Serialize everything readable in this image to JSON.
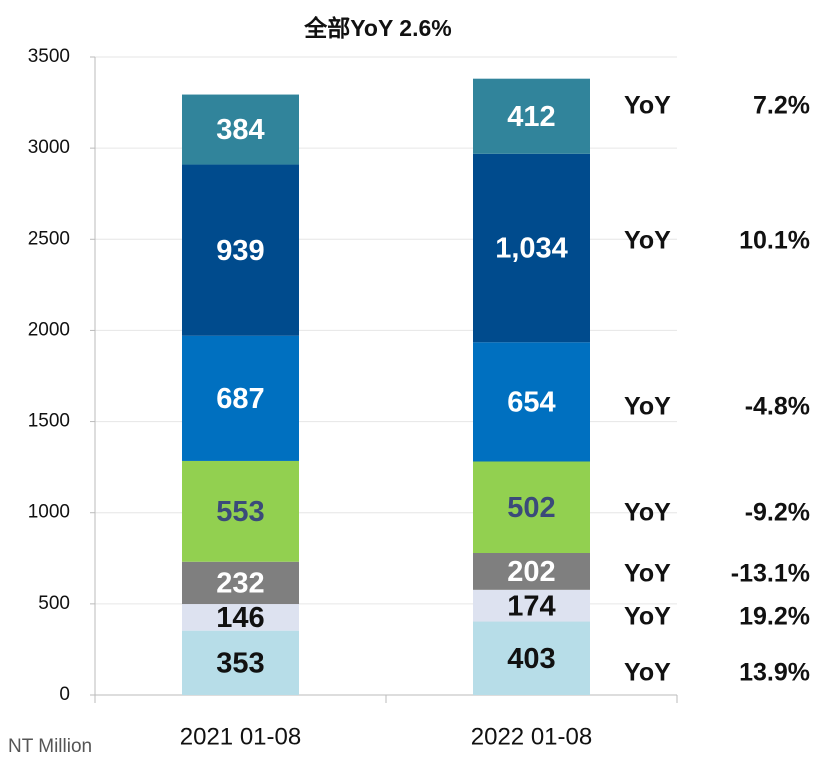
{
  "chart_data": {
    "type": "stacked_bar",
    "title": "全部YoY 2.6%",
    "unit_label": "NT Million",
    "categories": [
      "2021 01-08",
      "2022 01-08"
    ],
    "series": [
      {
        "color": "#b7dde8",
        "label_color": "#111111",
        "values": [
          353,
          403
        ]
      },
      {
        "color": "#dde2f0",
        "label_color": "#111111",
        "values": [
          146,
          174
        ]
      },
      {
        "color": "#7f7f7f",
        "label_color": "#ffffff",
        "values": [
          232,
          202
        ]
      },
      {
        "color": "#92d050",
        "label_color": "#3b4a7a",
        "values": [
          553,
          502
        ]
      },
      {
        "color": "#0070c0",
        "label_color": "#ffffff",
        "values": [
          687,
          654
        ]
      },
      {
        "color": "#004b8d",
        "label_color": "#ffffff",
        "values": [
          939,
          1034
        ],
        "value_labels": [
          "939",
          "1,034"
        ]
      },
      {
        "color": "#31849b",
        "label_color": "#ffffff",
        "values": [
          384,
          412
        ]
      }
    ],
    "annotations": [
      {
        "label": "YoY",
        "value": "7.2%"
      },
      {
        "label": "YoY",
        "value": "10.1%"
      },
      {
        "label": "YoY",
        "value": "-4.8%"
      },
      {
        "label": "YoY",
        "value": "-9.2%"
      },
      {
        "label": "YoY",
        "value": "-13.1%"
      },
      {
        "label": "YoY",
        "value": "19.2%"
      },
      {
        "label": "YoY",
        "value": "13.9%"
      }
    ],
    "ylim": [
      0,
      3500
    ],
    "yticks": [
      0,
      500,
      1000,
      1500,
      2000,
      2500,
      3000,
      3500
    ],
    "grid": true
  }
}
